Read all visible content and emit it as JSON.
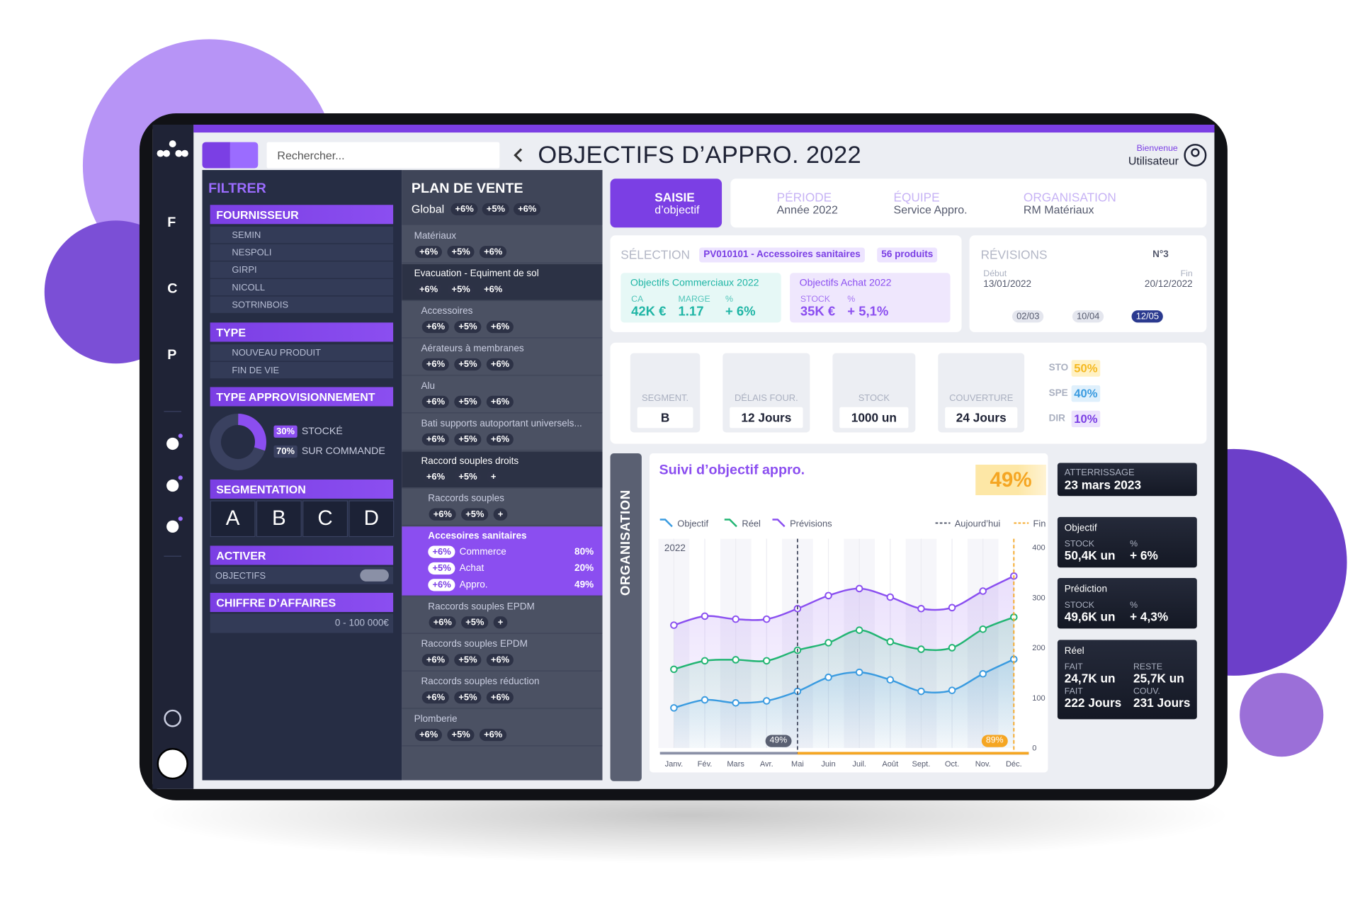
{
  "app": {
    "nav": [
      "F",
      "C",
      "P"
    ],
    "search_placeholder": "Rechercher...",
    "title": "OBJECTIFS D’APPRO. 2022",
    "user": {
      "greeting": "Bienvenue",
      "name": "Utilisateur"
    }
  },
  "filters": {
    "title": "FILTRER",
    "fournisseur": {
      "title": "FOURNISSEUR",
      "items": [
        "SEMIN",
        "NESPOLI",
        "GIRPI",
        "NICOLL",
        "SOTRINBOIS"
      ]
    },
    "type": {
      "title": "TYPE",
      "items": [
        "NOUVEAU PRODUIT",
        "FIN DE VIE"
      ]
    },
    "appro": {
      "title": "TYPE APPROVISIONNEMENT",
      "labels": [
        "STOCKÉ",
        "SUR COMMANDE"
      ],
      "values": [
        30,
        70
      ],
      "value_labels": [
        "30%",
        "70%"
      ],
      "colors": [
        "#8b4ef0",
        "#3a4160"
      ]
    },
    "segmentation": {
      "title": "SEGMENTATION",
      "options": [
        "A",
        "B",
        "C",
        "D"
      ]
    },
    "activer": {
      "title": "ACTIVER",
      "option": "OBJECTIFS"
    },
    "ca": {
      "title": "CHIFFRE D’AFFAIRES",
      "range": "0 - 100 000€"
    }
  },
  "plan": {
    "title": "PLAN DE VENTE",
    "global": {
      "label": "Global",
      "badges": [
        "+6%",
        "+5%",
        "+6%"
      ]
    },
    "items": [
      {
        "label": "Matériaux",
        "badges": [
          "+6%",
          "+5%",
          "+6%"
        ]
      },
      {
        "label": "Evacuation - Equiment de sol",
        "badges": [
          "+6%",
          "+5%",
          "+6%"
        ]
      },
      {
        "label": "Accessoires",
        "badges": [
          "+6%",
          "+5%",
          "+6%"
        ]
      },
      {
        "label": "Aérateurs à membranes",
        "badges": [
          "+6%",
          "+5%",
          "+6%"
        ]
      },
      {
        "label": "Alu",
        "badges": [
          "+6%",
          "+5%",
          "+6%"
        ]
      },
      {
        "label": "Bati supports autoportant universels...",
        "badges": [
          "+6%",
          "+5%",
          "+6%"
        ]
      },
      {
        "label": "Raccord souples droits",
        "badges": [
          "+6%",
          "+5%",
          "+"
        ]
      },
      {
        "label": "Raccords souples",
        "badges": [
          "+6%",
          "+5%",
          "+"
        ]
      },
      {
        "label": "Accesoires sanitaires",
        "rows": [
          {
            "badge": "+6%",
            "label": "Commerce",
            "value": 80,
            "value_label": "80%",
            "color": "#22b573"
          },
          {
            "badge": "+5%",
            "label": "Achat",
            "value": 20,
            "value_label": "20%",
            "color": "#e8374a"
          },
          {
            "badge": "+6%",
            "label": "Appro.",
            "value": 49,
            "value_label": "49%",
            "color": "#f58a1f"
          }
        ]
      },
      {
        "label": "Raccords souples EPDM",
        "badges": [
          "+6%",
          "+5%",
          "+"
        ]
      },
      {
        "label": "Raccords souples EPDM",
        "badges": [
          "+6%",
          "+5%",
          "+6%"
        ]
      },
      {
        "label": "Raccords souples réduction",
        "badges": [
          "+6%",
          "+5%",
          "+6%"
        ]
      },
      {
        "label": "Plomberie",
        "badges": [
          "+6%",
          "+5%",
          "+6%"
        ]
      }
    ]
  },
  "tabs": [
    {
      "title": "SAISIE",
      "subtitle": "d’objectif"
    },
    {
      "title": "PÉRIODE",
      "subtitle": "Année 2022"
    },
    {
      "title": "ÉQUIPE",
      "subtitle": "Service Appro."
    },
    {
      "title": "ORGANISATION",
      "subtitle": "RM Matériaux"
    }
  ],
  "selection": {
    "label": "SÉLECTION",
    "tags": [
      "PV010101 - Accessoires sanitaires",
      "56 produits"
    ],
    "cards": [
      {
        "title": "Objectifs Commerciaux 2022",
        "metrics": [
          {
            "label": "CA",
            "value": "42K €"
          },
          {
            "label": "MARGE",
            "value": "1.17"
          },
          {
            "label": "%",
            "value": "+ 6%"
          }
        ]
      },
      {
        "title": "Objectifs Achat 2022",
        "metrics": [
          {
            "label": "STOCK",
            "value": "35K €"
          },
          {
            "label": "%",
            "value": "+ 5,1%"
          }
        ]
      }
    ]
  },
  "revisions": {
    "title": "RÉVISIONS",
    "number": "N°3",
    "start_label": "Début",
    "start": "13/01/2022",
    "end_label": "Fin",
    "end": "20/12/2022",
    "points": [
      "02/03",
      "10/04",
      "12/05"
    ]
  },
  "kpis": [
    {
      "label": "SEGMENT.",
      "value": "B"
    },
    {
      "label": "DÉLAIS FOUR.",
      "value": "12 Jours"
    },
    {
      "label": "STOCK",
      "value": "1000 un"
    },
    {
      "label": "COUVERTURE",
      "value": "24 Jours"
    }
  ],
  "mix": {
    "categories": [
      "STO",
      "SPE",
      "DIR"
    ],
    "values": [
      50,
      40,
      10
    ],
    "value_labels": [
      "50%",
      "40%",
      "10%"
    ],
    "colors": [
      "#f5b921",
      "#3a9be0",
      "#7b3fe4"
    ]
  },
  "side_tab": "ORGANISATION",
  "chart_data": {
    "type": "line",
    "title": "Suivi d’objectif appro.",
    "score": "49%",
    "year": "2022",
    "categories": [
      "Janv.",
      "Fév.",
      "Mars",
      "Avr.",
      "Mai",
      "Juin",
      "Juil.",
      "Août",
      "Sept.",
      "Oct.",
      "Nov.",
      "Déc."
    ],
    "series": [
      {
        "name": "Objectif",
        "color": "#3a9be0",
        "values": [
          80,
          96,
          90,
          94,
          113,
          141,
          151,
          136,
          113,
          115,
          148,
          177
        ]
      },
      {
        "name": "Réel",
        "color": "#22b573",
        "values": [
          157,
          174,
          176,
          174,
          195,
          210,
          235,
          212,
          197,
          200,
          237,
          261
        ]
      },
      {
        "name": "Prévisions",
        "color": "#8a4ff0",
        "values": [
          245,
          263,
          257,
          257,
          278,
          304,
          318,
          301,
          278,
          280,
          313,
          343
        ]
      }
    ],
    "ylim": [
      0,
      400
    ],
    "yticks": [
      0,
      100,
      200,
      300,
      400
    ],
    "references": [
      {
        "name": "Aujourd’hui",
        "at": "Mai",
        "color": "#4a5064",
        "progress": "49%"
      },
      {
        "name": "Fin",
        "at": "Déc.",
        "color": "#f5a623",
        "progress": "89%"
      }
    ]
  },
  "cards": {
    "landing": {
      "label": "ATTERRISSAGE",
      "value": "23 mars 2023"
    },
    "objective": {
      "title": "Objectif",
      "metrics": [
        {
          "label": "STOCK",
          "value": "50,4K un"
        },
        {
          "label": "%",
          "value": "+ 6%"
        }
      ]
    },
    "prediction": {
      "title": "Prédiction",
      "metrics": [
        {
          "label": "STOCK",
          "value": "49,6K un"
        },
        {
          "label": "%",
          "value": "+ 4,3%"
        }
      ]
    },
    "actual": {
      "title": "Réel",
      "metrics": [
        {
          "label": "FAIT",
          "value": "24,7K un"
        },
        {
          "label": "RESTE",
          "value": "25,7K un"
        },
        {
          "label": "FAIT",
          "value": "222 Jours"
        },
        {
          "label": "COUV.",
          "value": "231 Jours"
        }
      ]
    }
  }
}
